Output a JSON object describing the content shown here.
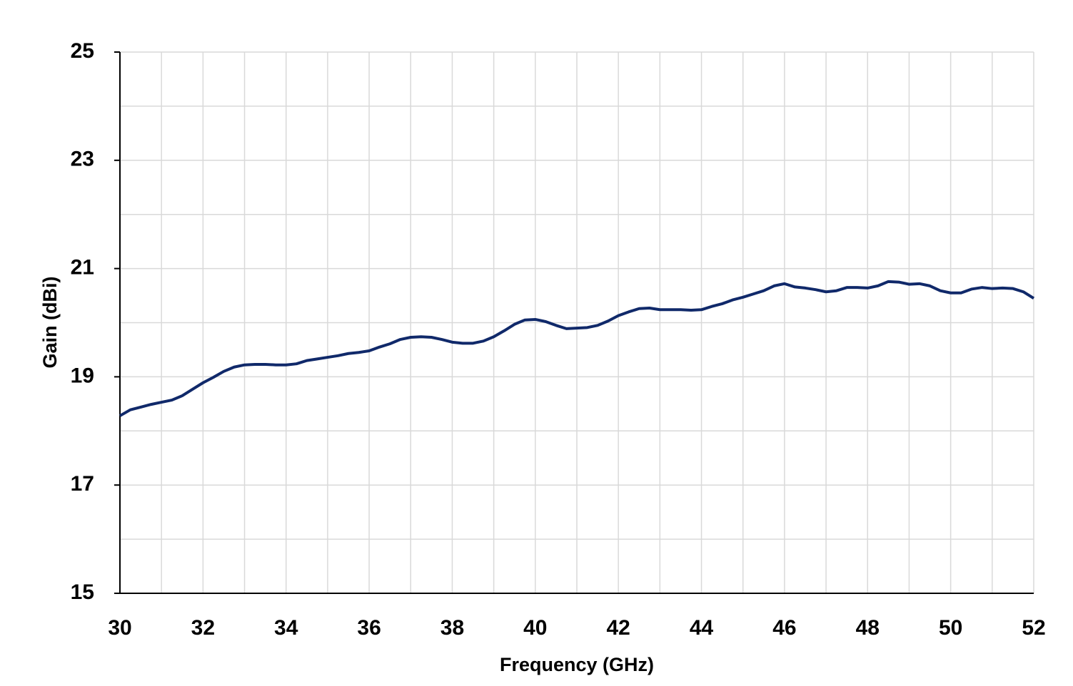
{
  "chart_data": {
    "type": "line",
    "xlabel": "Frequency  (GHz)",
    "ylabel": "Gain (dBi)",
    "xlim": [
      30,
      52
    ],
    "xticks": [
      30,
      32,
      34,
      36,
      38,
      40,
      42,
      44,
      46,
      48,
      50,
      52
    ],
    "xminor_ticks": [
      31,
      33,
      35,
      37,
      39,
      41,
      43,
      45,
      47,
      49,
      51
    ],
    "ylim": [
      15,
      25
    ],
    "yticks": [
      15,
      17,
      19,
      21,
      23,
      25
    ],
    "yminor_ticks": [
      16,
      18,
      20,
      22,
      24
    ],
    "grid": true,
    "x": [
      30,
      30.25,
      30.5,
      30.75,
      31,
      31.25,
      31.5,
      31.75,
      32,
      32.25,
      32.5,
      32.75,
      33,
      33.25,
      33.5,
      33.75,
      34,
      34.25,
      34.5,
      34.75,
      35,
      35.25,
      35.5,
      35.75,
      36,
      36.25,
      36.5,
      36.75,
      37,
      37.25,
      37.5,
      37.75,
      38,
      38.25,
      38.5,
      38.75,
      39,
      39.25,
      39.5,
      39.75,
      40,
      40.25,
      40.5,
      40.75,
      41,
      41.25,
      41.5,
      41.75,
      42,
      42.25,
      42.5,
      42.75,
      43,
      43.25,
      43.5,
      43.75,
      44,
      44.25,
      44.5,
      44.75,
      45,
      45.25,
      45.5,
      45.75,
      46,
      46.25,
      46.5,
      46.75,
      47,
      47.25,
      47.5,
      47.75,
      48,
      48.25,
      48.5,
      48.75,
      49,
      49.25,
      49.5,
      49.75,
      50,
      50.25,
      50.5,
      50.75,
      51,
      51.25,
      51.5,
      51.75,
      52
    ],
    "series": [
      {
        "color": "#10296a",
        "values": [
          18.28,
          18.39,
          18.44,
          18.49,
          18.53,
          18.57,
          18.65,
          18.77,
          18.89,
          18.99,
          19.1,
          19.18,
          19.22,
          19.23,
          19.23,
          19.22,
          19.22,
          19.24,
          19.3,
          19.33,
          19.36,
          19.39,
          19.43,
          19.45,
          19.48,
          19.55,
          19.61,
          19.69,
          19.73,
          19.74,
          19.73,
          19.69,
          19.64,
          19.62,
          19.62,
          19.66,
          19.74,
          19.85,
          19.97,
          20.05,
          20.06,
          20.02,
          19.95,
          19.89,
          19.9,
          19.91,
          19.95,
          20.03,
          20.13,
          20.2,
          20.26,
          20.27,
          20.24,
          20.24,
          20.24,
          20.23,
          20.24,
          20.3,
          20.35,
          20.42,
          20.47,
          20.53,
          20.59,
          20.68,
          20.72,
          20.66,
          20.64,
          20.61,
          20.57,
          20.59,
          20.65,
          20.65,
          20.64,
          20.68,
          20.76,
          20.75,
          20.71,
          20.72,
          20.68,
          20.59,
          20.55,
          20.55,
          20.62,
          20.65,
          20.63,
          20.64,
          20.63,
          20.57,
          20.45
        ]
      }
    ]
  }
}
